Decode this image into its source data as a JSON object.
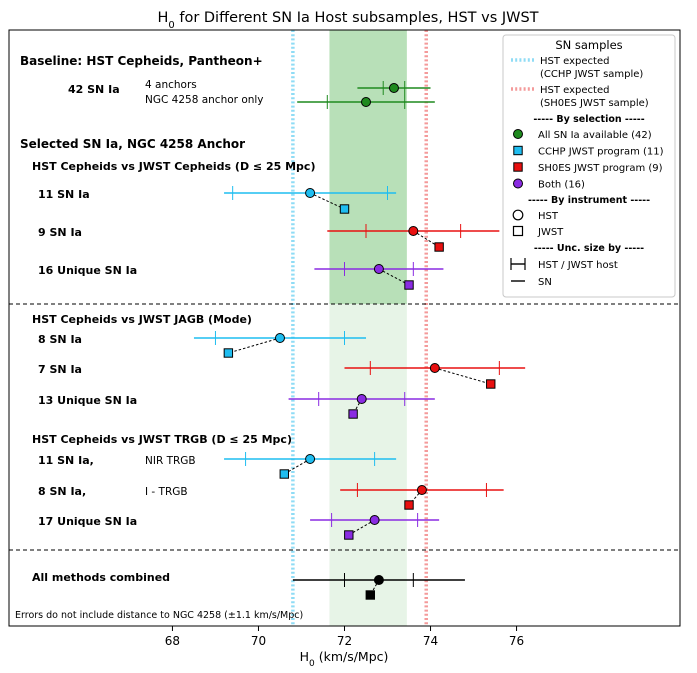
{
  "chart_data": {
    "type": "scatter",
    "title": "H₀ for Different SN Ia Host subsamples, HST vs JWST",
    "xlabel": "H₀ (km/s/Mpc)",
    "ylabel": "",
    "xlim": [
      64.2,
      79.8
    ],
    "xticks": [
      68,
      70,
      72,
      74,
      76
    ],
    "grid": false,
    "legend_position": "top-right",
    "colors": {
      "all": "#1f8a1f",
      "ccchp": "#1fbdf0",
      "sh0es": "#e81010",
      "both": "#8a2be2",
      "combined": "#000000",
      "ccchp_line": "#8fdcf5",
      "sh0es_line": "#f49a9a",
      "band": "#56b456"
    },
    "reference_lines": [
      {
        "name": "HST expected (CCHP JWST sample)",
        "x": 70.8,
        "style": "dotted",
        "color": "#8fdcf5"
      },
      {
        "name": "HST expected (SH0ES JWST sample)",
        "x": 73.9,
        "style": "dotted",
        "color": "#f49a9a"
      }
    ],
    "band": {
      "x": [
        71.65,
        73.45
      ]
    },
    "sections": [
      {
        "title": "Baseline: HST Cepheids, Pantheon+"
      },
      {
        "title": "Selected SN Ia, NGC 4258 Anchor"
      },
      {
        "title": "All methods combined"
      }
    ],
    "subsections": [
      {
        "title": "HST Cepheids vs JWST Cepheids (D ≤ 25 Mpc)"
      },
      {
        "title": "HST Cepheids vs JWST JAGB (Mode)"
      },
      {
        "title": "HST Cepheids vs JWST TRGB (D ≤ 25 Mpc)"
      }
    ],
    "rows": [
      {
        "label": "42 SN Ia",
        "note": "4 anchors",
        "color": "all",
        "marker": "circle",
        "value": 73.15,
        "host_err": [
          72.9,
          73.4
        ],
        "sn_err": [
          72.3,
          74.0
        ]
      },
      {
        "label": "",
        "note": "NGC 4258 anchor only",
        "color": "all",
        "marker": "circle",
        "value": 72.5,
        "host_err": [
          71.6,
          73.4
        ],
        "sn_err": [
          70.9,
          74.1
        ]
      },
      {
        "label": "11 SN Ia",
        "note": "",
        "color": "ccchp",
        "hst": {
          "value": 71.2,
          "host_err": [
            69.4,
            73.0
          ],
          "sn_err": [
            69.2,
            73.2
          ]
        },
        "jwst": {
          "value": 72.0
        }
      },
      {
        "label": "9 SN Ia",
        "note": "",
        "color": "sh0es",
        "hst": {
          "value": 73.6,
          "host_err": [
            72.5,
            74.7
          ],
          "sn_err": [
            71.6,
            75.6
          ]
        },
        "jwst": {
          "value": 74.2
        }
      },
      {
        "label": "16 Unique SN Ia",
        "note": "",
        "color": "both",
        "hst": {
          "value": 72.8,
          "host_err": [
            72.0,
            73.6
          ],
          "sn_err": [
            71.3,
            74.3
          ]
        },
        "jwst": {
          "value": 73.5
        }
      },
      {
        "label": "8 SN Ia",
        "note": "",
        "color": "ccchp",
        "hst": {
          "value": 70.5,
          "host_err": [
            69.0,
            72.0
          ],
          "sn_err": [
            68.5,
            72.5
          ]
        },
        "jwst": {
          "value": 69.3
        }
      },
      {
        "label": "7 SN Ia",
        "note": "",
        "color": "sh0es",
        "hst": {
          "value": 74.1,
          "host_err": [
            72.6,
            75.6
          ],
          "sn_err": [
            72.0,
            76.2
          ]
        },
        "jwst": {
          "value": 75.4
        }
      },
      {
        "label": "13 Unique SN Ia",
        "note": "",
        "color": "both",
        "hst": {
          "value": 72.4,
          "host_err": [
            71.4,
            73.4
          ],
          "sn_err": [
            70.7,
            74.1
          ]
        },
        "jwst": {
          "value": 72.2
        }
      },
      {
        "label": "11 SN Ia,",
        "note": "NIR TRGB",
        "color": "ccchp",
        "hst": {
          "value": 71.2,
          "host_err": [
            69.7,
            72.7
          ],
          "sn_err": [
            69.2,
            73.2
          ]
        },
        "jwst": {
          "value": 70.6
        }
      },
      {
        "label": "8 SN Ia,",
        "note": "I - TRGB",
        "color": "sh0es",
        "hst": {
          "value": 73.8,
          "host_err": [
            72.3,
            75.3
          ],
          "sn_err": [
            71.9,
            75.7
          ]
        },
        "jwst": {
          "value": 73.5
        }
      },
      {
        "label": "17 Unique SN Ia",
        "note": "",
        "color": "both",
        "hst": {
          "value": 72.7,
          "host_err": [
            71.7,
            73.7
          ],
          "sn_err": [
            71.2,
            74.2
          ]
        },
        "jwst": {
          "value": 72.1
        }
      },
      {
        "label": "",
        "note": "",
        "color": "combined",
        "hst": {
          "value": 72.8,
          "host_err": [
            72.0,
            73.6
          ],
          "sn_err": [
            70.8,
            74.8
          ]
        },
        "jwst": {
          "value": 72.6
        }
      }
    ],
    "legend": {
      "title": "SN samples",
      "lines": [
        "HST expected\n(CCHP JWST sample)",
        "HST expected\n(SH0ES JWST sample)"
      ],
      "by_selection_header": "----- By selection -----",
      "selection": [
        {
          "label": "All SN Ia available (42)",
          "color": "all",
          "marker": "circle"
        },
        {
          "label": "CCHP JWST program (11)",
          "color": "ccchp",
          "marker": "square"
        },
        {
          "label": "SH0ES JWST program (9)",
          "color": "sh0es",
          "marker": "square"
        },
        {
          "label": "Both (16)",
          "color": "both",
          "marker": "circle"
        }
      ],
      "by_instrument_header": "----- By instrument -----",
      "instrument": [
        {
          "label": "HST",
          "marker": "circle"
        },
        {
          "label": "JWST",
          "marker": "square"
        }
      ],
      "unc_header": "----- Unc. size by -----",
      "unc": [
        {
          "label": "HST / JWST host",
          "style": "capped"
        },
        {
          "label": "SN",
          "style": "line"
        }
      ]
    },
    "footnote": "Errors do not include distance to NGC 4258 (±1.1 km/s/Mpc)"
  }
}
